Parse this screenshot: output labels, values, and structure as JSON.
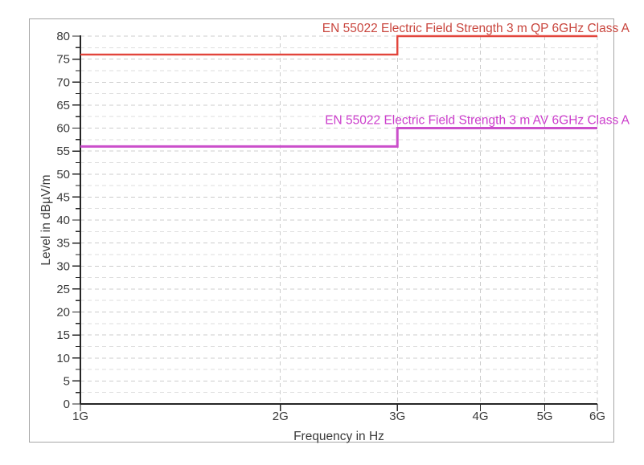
{
  "window": {
    "background": "#ffffff",
    "frame_fill": "#ffffff",
    "frame_border_color": "#a6a6a6"
  },
  "chart_data": {
    "type": "line",
    "subtype": "step",
    "title": "",
    "xlabel": "Frequency in Hz",
    "ylabel": "Level in dBµV/m",
    "x_scale": "log",
    "xlim_hz": [
      1000000000,
      6000000000
    ],
    "ylim": [
      0,
      80
    ],
    "y_major_step": 5,
    "y_minor_step": 2.5,
    "grid": "dashed",
    "legend_position": "labels-above-lines-right-aligned",
    "x_ticks": [
      {
        "hz": 1000000000,
        "label": "1G"
      },
      {
        "hz": 2000000000,
        "label": "2G"
      },
      {
        "hz": 3000000000,
        "label": "3G"
      },
      {
        "hz": 4000000000,
        "label": "4G"
      },
      {
        "hz": 5000000000,
        "label": "5G"
      },
      {
        "hz": 6000000000,
        "label": "6G"
      }
    ],
    "y_tick_labels": [
      "0",
      "5",
      "10",
      "15",
      "20",
      "25",
      "30",
      "35",
      "40",
      "45",
      "50",
      "55",
      "60",
      "65",
      "70",
      "75",
      "80"
    ],
    "series": [
      {
        "name": "EN 55022 Electric Field Strength 3 m QP 6GHz Class A",
        "line_color": "#e2453c",
        "label_color": "#c9463e",
        "line_width": 2.4,
        "points_hz_dbuvm": [
          [
            1000000000,
            76
          ],
          [
            3000000000,
            76
          ],
          [
            3000000000,
            80
          ],
          [
            6000000000,
            80
          ]
        ]
      },
      {
        "name": "EN 55022 Electric Field Strength 3 m AV 6GHz Class A",
        "line_color": "#cb4fcb",
        "label_color": "#cc3ecc",
        "line_width": 3,
        "points_hz_dbuvm": [
          [
            1000000000,
            56
          ],
          [
            3000000000,
            56
          ],
          [
            3000000000,
            60
          ],
          [
            6000000000,
            60
          ]
        ]
      }
    ],
    "colors": {
      "axis": "#262626",
      "tick_label": "#3a3a3a",
      "grid_major": "#cccccc",
      "grid_minor": "#dedede"
    }
  }
}
